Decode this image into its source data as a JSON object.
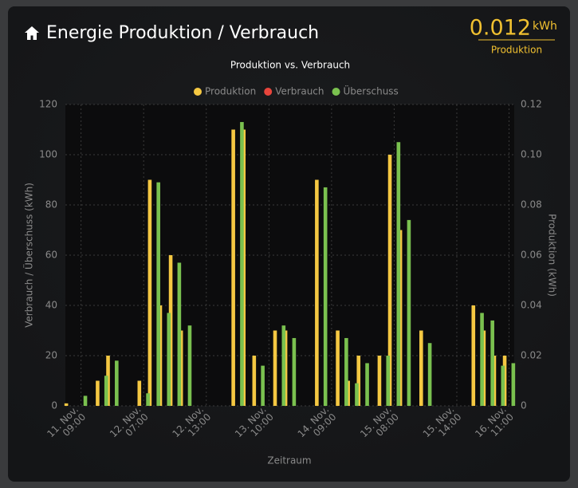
{
  "header": {
    "title": "Energie Produktion / Verbrauch",
    "value": 0.012,
    "unit": "kWh",
    "label": "Produktion"
  },
  "chart_data": {
    "type": "bar",
    "title": "Produktion vs. Verbrauch",
    "categories": [
      null,
      [
        "11. Nov.",
        "09:00"
      ],
      null,
      null,
      null,
      null,
      null,
      [
        "12. Nov.",
        "07:00"
      ],
      null,
      null,
      null,
      null,
      null,
      [
        "12. Nov.",
        "13:00"
      ],
      null,
      null,
      null,
      null,
      null,
      [
        "13. Nov.",
        "10:00"
      ],
      null,
      null,
      null,
      null,
      null,
      [
        "14. Nov.",
        "09:00"
      ],
      null,
      null,
      null,
      null,
      null,
      [
        "15. Nov.",
        "08:00"
      ],
      null,
      null,
      null,
      null,
      null,
      [
        "15. Nov.",
        "14:00"
      ],
      null,
      null,
      null,
      null,
      [
        "16. Nov.",
        "11:00"
      ]
    ],
    "series": [
      {
        "name": "Produktion",
        "color": "#f5c842",
        "axis": "y2",
        "values": [
          0.001,
          0,
          0,
          0.01,
          0.02,
          0,
          0,
          0.01,
          0.09,
          0.04,
          0.06,
          0.03,
          0,
          0,
          0,
          0,
          0.11,
          0.11,
          0.02,
          0,
          0.03,
          0.03,
          0,
          0,
          0.09,
          0,
          0.03,
          0.01,
          0.02,
          0,
          0.02,
          0.1,
          0.07,
          0,
          0.03,
          0,
          0,
          0,
          0,
          0.04,
          0.03,
          0.02,
          0.02
        ]
      },
      {
        "name": "Verbrauch",
        "color": "#e8453c",
        "values": [
          0,
          0,
          0,
          0,
          0,
          0,
          0,
          0,
          0,
          0,
          0,
          0,
          0,
          0,
          0,
          0,
          0,
          0,
          0,
          0,
          0,
          0,
          0,
          0,
          0,
          0,
          0,
          0,
          0,
          0,
          0,
          0,
          0,
          0,
          0,
          0,
          0,
          0,
          0,
          0,
          0,
          0,
          0
        ]
      },
      {
        "name": "Überschuss",
        "color": "#7ac14f",
        "values": [
          0,
          4,
          0,
          12,
          18,
          0,
          0,
          5,
          89,
          37,
          57,
          32,
          0,
          0,
          0,
          0,
          113,
          0,
          16,
          0,
          32,
          27,
          0,
          0,
          87,
          0,
          27,
          9,
          17,
          0,
          20,
          105,
          74,
          0,
          25,
          0,
          0,
          0,
          0,
          37,
          34,
          16,
          17
        ]
      }
    ],
    "ylabel": "Verbrauch / Überschuss (kWh)",
    "y2label": "Produktion (kWh)",
    "xlabel": "Zeitraum",
    "ylim": [
      0,
      120
    ],
    "yticks": [
      0,
      20,
      40,
      60,
      80,
      100,
      120
    ],
    "y2lim": [
      0,
      0.12
    ],
    "y2ticks": [
      0,
      0.02,
      0.04,
      0.06,
      0.08,
      {
        "value": 0.1,
        "label": "0.10"
      },
      0.12
    ],
    "grid": true,
    "legend": "top"
  }
}
